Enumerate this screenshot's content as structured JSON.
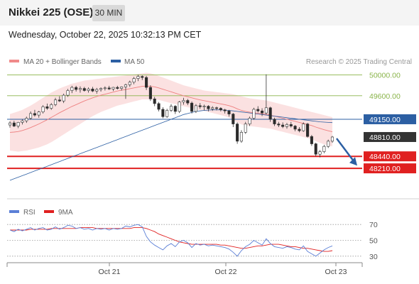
{
  "header": {
    "title": "Nikkei 225 (OSE)",
    "interval": "30 MIN",
    "datetime": "Wednesday, October 22, 2025 10:32:13 PM CET"
  },
  "legend": {
    "items": [
      {
        "label": "MA 20 + Bollinger Bands",
        "color": "#f08a8a"
      },
      {
        "label": "MA 50",
        "color": "#2c5fa3"
      }
    ],
    "credit": "Research © 2025 Trading Central"
  },
  "chart_data": [
    {
      "type": "candlestick",
      "ylim": [
        47600,
        50400
      ],
      "x_tick_labels": [
        "Oct 21",
        "Oct 22",
        "Oct 23"
      ],
      "levels": [
        {
          "value": 50000.0,
          "label": "50000.00",
          "kind": "resistance",
          "color": "#8ab44a"
        },
        {
          "value": 49600.0,
          "label": "49600.00",
          "kind": "resistance",
          "color": "#8ab44a"
        },
        {
          "value": 49150.0,
          "label": "49150.00",
          "kind": "pivot",
          "color": "#2c5fa3"
        },
        {
          "value": 48810.0,
          "label": "48810.00",
          "kind": "last",
          "color": "#333333"
        },
        {
          "value": 48440.0,
          "label": "48440.00",
          "kind": "support",
          "color": "#e02020"
        },
        {
          "value": 48210.0,
          "label": "48210.00",
          "kind": "support",
          "color": "#e02020"
        }
      ],
      "forecast_arrow": {
        "from": 48810,
        "to": 48440,
        "direction": "down",
        "color": "#2c5fa3"
      },
      "series": [
        {
          "name": "Price",
          "candles": [
            [
              49040,
              49110,
              48990,
              49080
            ],
            [
              49080,
              49120,
              49000,
              49020
            ],
            [
              49020,
              49100,
              48980,
              49090
            ],
            [
              49090,
              49150,
              49050,
              49120
            ],
            [
              49120,
              49200,
              49080,
              49170
            ],
            [
              49170,
              49300,
              49140,
              49260
            ],
            [
              49260,
              49330,
              49200,
              49230
            ],
            [
              49230,
              49310,
              49180,
              49290
            ],
            [
              49290,
              49420,
              49260,
              49390
            ],
            [
              49390,
              49450,
              49330,
              49360
            ],
            [
              49360,
              49460,
              49330,
              49430
            ],
            [
              49430,
              49560,
              49400,
              49520
            ],
            [
              49520,
              49590,
              49480,
              49500
            ],
            [
              49500,
              49640,
              49460,
              49610
            ],
            [
              49610,
              49730,
              49580,
              49700
            ],
            [
              49700,
              49790,
              49650,
              49760
            ],
            [
              49760,
              49790,
              49680,
              49720
            ],
            [
              49720,
              49780,
              49660,
              49740
            ],
            [
              49740,
              49770,
              49680,
              49700
            ],
            [
              49700,
              49760,
              49660,
              49730
            ],
            [
              49730,
              49770,
              49670,
              49690
            ],
            [
              49690,
              49750,
              49640,
              49720
            ],
            [
              49720,
              49760,
              49680,
              49740
            ],
            [
              49740,
              49780,
              49700,
              49750
            ],
            [
              49750,
              49790,
              49710,
              49730
            ],
            [
              49730,
              49770,
              49690,
              49760
            ],
            [
              49760,
              49790,
              49720,
              49740
            ],
            [
              49740,
              49780,
              49700,
              49770
            ],
            [
              49770,
              49830,
              49540,
              49810
            ],
            [
              49810,
              49890,
              49770,
              49860
            ],
            [
              49860,
              49960,
              49820,
              49930
            ],
            [
              49930,
              50000,
              49880,
              49970
            ],
            [
              49970,
              49990,
              49900,
              49950
            ],
            [
              49950,
              49980,
              49710,
              49760
            ],
            [
              49760,
              49800,
              49500,
              49540
            ],
            [
              49540,
              49580,
              49400,
              49450
            ],
            [
              49450,
              49480,
              49300,
              49340
            ],
            [
              49340,
              49380,
              49170,
              49200
            ],
            [
              49200,
              49350,
              49180,
              49320
            ],
            [
              49320,
              49440,
              49290,
              49400
            ],
            [
              49400,
              49420,
              49250,
              49300
            ],
            [
              49300,
              49500,
              49270,
              49480
            ],
            [
              49480,
              49560,
              49430,
              49510
            ],
            [
              49510,
              49540,
              49420,
              49460
            ],
            [
              49460,
              49490,
              49260,
              49300
            ],
            [
              49300,
              49440,
              49270,
              49410
            ],
            [
              49410,
              49460,
              49350,
              49390
            ],
            [
              49390,
              49430,
              49320,
              49400
            ],
            [
              49400,
              49420,
              49300,
              49350
            ],
            [
              49350,
              49400,
              49310,
              49370
            ],
            [
              49370,
              49390,
              49320,
              49360
            ],
            [
              49360,
              49380,
              49300,
              49330
            ],
            [
              49330,
              49350,
              49260,
              49310
            ],
            [
              49310,
              49330,
              49200,
              49250
            ],
            [
              49250,
              49270,
              49000,
              49060
            ],
            [
              49060,
              49090,
              48680,
              48730
            ],
            [
              48730,
              48940,
              48700,
              48900
            ],
            [
              48900,
              49100,
              48870,
              49060
            ],
            [
              49060,
              49200,
              49020,
              49170
            ],
            [
              49170,
              49370,
              49140,
              49340
            ],
            [
              49340,
              49400,
              49280,
              49310
            ],
            [
              49310,
              49360,
              49210,
              49270
            ],
            [
              49270,
              50010,
              49240,
              49370
            ],
            [
              49370,
              49390,
              49100,
              49150
            ],
            [
              49150,
              49180,
              49020,
              49060
            ],
            [
              49060,
              49100,
              49000,
              49040
            ],
            [
              49040,
              49090,
              48980,
              49010
            ],
            [
              49010,
              49080,
              48970,
              49050
            ],
            [
              49050,
              49100,
              48990,
              49020
            ],
            [
              49020,
              49040,
              48920,
              48960
            ],
            [
              48960,
              49000,
              48900,
              48930
            ],
            [
              48930,
              49090,
              48910,
              49060
            ],
            [
              49060,
              49080,
              48800,
              48820
            ],
            [
              48820,
              48850,
              48640,
              48680
            ],
            [
              48680,
              48700,
              48440,
              48480
            ],
            [
              48480,
              48560,
              48420,
              48530
            ],
            [
              48530,
              48660,
              48500,
              48630
            ],
            [
              48630,
              48760,
              48600,
              48730
            ],
            [
              48730,
              48830,
              48700,
              48810
            ]
          ]
        },
        {
          "name": "MA 20",
          "values": [
            48900,
            48905,
            48915,
            48935,
            48960,
            48990,
            49025,
            49060,
            49100,
            49140,
            49185,
            49230,
            49275,
            49315,
            49355,
            49395,
            49430,
            49465,
            49500,
            49530,
            49560,
            49585,
            49610,
            49630,
            49650,
            49670,
            49690,
            49705,
            49720,
            49735,
            49750,
            49765,
            49780,
            49785,
            49780,
            49770,
            49750,
            49725,
            49700,
            49675,
            49650,
            49625,
            49600,
            49580,
            49560,
            49540,
            49520,
            49505,
            49490,
            49475,
            49460,
            49445,
            49430,
            49410,
            49385,
            49350,
            49320,
            49300,
            49285,
            49275,
            49265,
            49255,
            49245,
            49230,
            49210,
            49190,
            49170,
            49150,
            49130,
            49110,
            49090,
            49070,
            49050,
            49030,
            49000,
            48975,
            48950,
            48930,
            48910
          ]
        },
        {
          "name": "Bollinger Upper",
          "values": [
            49250,
            49275,
            49300,
            49330,
            49370,
            49410,
            49460,
            49510,
            49560,
            49610,
            49660,
            49700,
            49740,
            49770,
            49800,
            49830,
            49850,
            49870,
            49890,
            49900,
            49910,
            49920,
            49930,
            49940,
            49950,
            49960,
            49970,
            49980,
            49990,
            50000,
            50010,
            50020,
            50030,
            50040,
            50030,
            50010,
            49980,
            49950,
            49920,
            49890,
            49860,
            49830,
            49800,
            49780,
            49760,
            49740,
            49720,
            49700,
            49690,
            49680,
            49670,
            49660,
            49650,
            49640,
            49630,
            49610,
            49590,
            49570,
            49550,
            49540,
            49530,
            49520,
            49510,
            49490,
            49470,
            49450,
            49430,
            49410,
            49390,
            49370,
            49350,
            49330,
            49310,
            49290,
            49270,
            49250,
            49230,
            49210,
            49190
          ]
        },
        {
          "name": "Bollinger Lower",
          "values": [
            48550,
            48540,
            48530,
            48540,
            48550,
            48570,
            48590,
            48610,
            48640,
            48670,
            48710,
            48760,
            48810,
            48860,
            48910,
            48960,
            49010,
            49060,
            49110,
            49160,
            49210,
            49250,
            49290,
            49320,
            49350,
            49380,
            49410,
            49430,
            49450,
            49470,
            49490,
            49510,
            49530,
            49530,
            49530,
            49530,
            49520,
            49500,
            49480,
            49460,
            49440,
            49420,
            49400,
            49380,
            49360,
            49340,
            49320,
            49310,
            49290,
            49270,
            49250,
            49230,
            49210,
            49180,
            49140,
            49090,
            49050,
            49030,
            49020,
            49010,
            49000,
            48990,
            48980,
            48970,
            48950,
            48930,
            48910,
            48890,
            48870,
            48850,
            48830,
            48810,
            48790,
            48770,
            48730,
            48700,
            48670,
            48650,
            48630
          ]
        },
        {
          "name": "MA 50",
          "values": [
            47980,
            48010,
            48040,
            48070,
            48100,
            48130,
            48160,
            48190,
            48220,
            48250,
            48280,
            48310,
            48340,
            48370,
            48400,
            48430,
            48460,
            48490,
            48520,
            48550,
            48580,
            48610,
            48640,
            48670,
            48700,
            48730,
            48760,
            48790,
            48820,
            48850,
            48880,
            48910,
            48940,
            48970,
            49000,
            49030,
            49060,
            49090,
            49120,
            49150,
            49180,
            49210,
            49240,
            49260,
            49280,
            49300,
            49310,
            49320,
            49325,
            49330,
            49330,
            49330,
            49325,
            49320,
            49310,
            49300,
            49290,
            49280,
            49270,
            49260,
            49250,
            49240,
            49230,
            49220,
            49210,
            49200,
            49190,
            49180,
            49170,
            49160,
            49150,
            49140,
            49130,
            49120,
            49110,
            49100,
            49095,
            49090,
            49085
          ]
        }
      ]
    },
    {
      "type": "line",
      "ylim": [
        20,
        80
      ],
      "y_tick_labels": [
        "70",
        "50",
        "30"
      ],
      "y_ticks": [
        70,
        50,
        30
      ],
      "legend": [
        {
          "label": "RSI",
          "color": "#5b7fd6"
        },
        {
          "label": "9MA",
          "color": "#e02020"
        }
      ],
      "series": [
        {
          "name": "RSI",
          "values": [
            63,
            61,
            64,
            62,
            64,
            66,
            63,
            65,
            66,
            63,
            64,
            67,
            64,
            66,
            69,
            68,
            65,
            66,
            64,
            65,
            63,
            65,
            64,
            65,
            63,
            65,
            64,
            65,
            68,
            67,
            69,
            70,
            67,
            55,
            48,
            44,
            41,
            38,
            43,
            46,
            42,
            48,
            50,
            47,
            41,
            46,
            44,
            45,
            43,
            44,
            43,
            42,
            41,
            39,
            35,
            30,
            37,
            42,
            45,
            50,
            47,
            44,
            52,
            46,
            42,
            41,
            40,
            42,
            41,
            39,
            38,
            43,
            36,
            33,
            30,
            34,
            38,
            41,
            43
          ]
        },
        {
          "name": "9MA",
          "values": [
            63,
            63,
            63,
            63,
            63,
            64,
            64,
            64,
            64,
            64,
            65,
            65,
            65,
            65,
            65,
            65,
            65,
            66,
            66,
            66,
            66,
            65,
            65,
            65,
            65,
            65,
            65,
            65,
            65,
            65,
            66,
            66,
            66,
            65,
            63,
            61,
            58,
            56,
            54,
            52,
            50,
            48,
            47,
            46,
            45,
            45,
            45,
            45,
            45,
            45,
            45,
            44,
            44,
            43,
            42,
            41,
            40,
            40,
            41,
            42,
            43,
            43,
            44,
            45,
            45,
            45,
            44,
            43,
            42,
            42,
            41,
            40,
            40,
            39,
            38,
            37,
            36,
            36,
            37
          ]
        }
      ]
    }
  ]
}
